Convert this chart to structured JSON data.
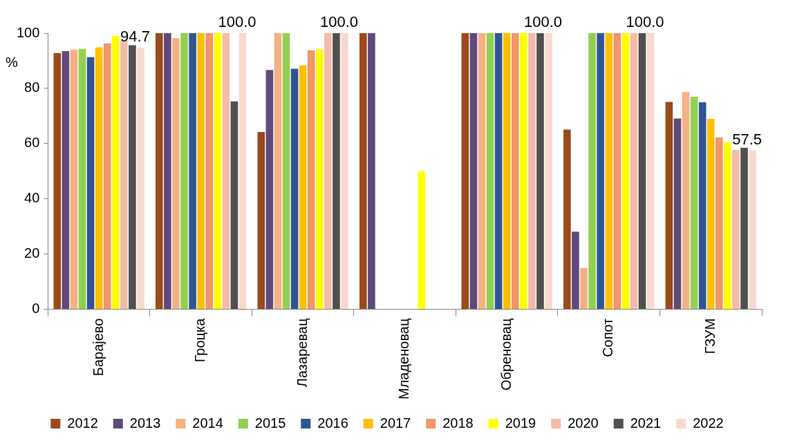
{
  "chart_data": {
    "type": "bar",
    "ylabel": "%",
    "categories": [
      "Барајево",
      "Гроцка",
      "Лазаревац",
      "Младеновац",
      "Обреновац",
      "Сопот",
      "ГЗУМ"
    ],
    "ylim": [
      0,
      100
    ],
    "yticks": [
      0,
      20,
      40,
      60,
      80,
      100
    ],
    "grid": false,
    "legend": "bottom",
    "series": [
      {
        "name": "2012",
        "color": "#9c4a1a",
        "values": [
          92.8,
          100,
          64.2,
          100,
          100,
          65.1,
          75.1
        ]
      },
      {
        "name": "2013",
        "color": "#604a7b",
        "values": [
          93.5,
          100,
          86.7,
          100,
          100,
          28.1,
          69.1
        ]
      },
      {
        "name": "2014",
        "color": "#f4b183",
        "values": [
          94.0,
          98.2,
          100,
          null,
          100,
          15.0,
          78.7
        ]
      },
      {
        "name": "2015",
        "color": "#92d050",
        "values": [
          94.3,
          100,
          100,
          null,
          100,
          100,
          77.0
        ]
      },
      {
        "name": "2016",
        "color": "#2f5597",
        "values": [
          91.3,
          100,
          87.1,
          null,
          100,
          100,
          75.0
        ]
      },
      {
        "name": "2017",
        "color": "#ffc000",
        "values": [
          94.9,
          100,
          88.3,
          null,
          100,
          100,
          69.0
        ]
      },
      {
        "name": "2018",
        "color": "#f4956a",
        "values": [
          96.3,
          100,
          93.8,
          null,
          100,
          100,
          62.3
        ]
      },
      {
        "name": "2019",
        "color": "#ffff00",
        "values": [
          99.0,
          100,
          94.1,
          50,
          100,
          100,
          60.4
        ]
      },
      {
        "name": "2020",
        "color": "#f5bba8",
        "values": [
          97.4,
          100,
          100,
          null,
          100,
          100,
          57.7
        ]
      },
      {
        "name": "2021",
        "color": "#505050",
        "values": [
          95.6,
          75.3,
          100,
          null,
          100,
          100,
          58.5
        ]
      },
      {
        "name": "2022",
        "color": "#f9d9cf",
        "values": [
          94.7,
          100,
          100,
          null,
          100,
          100,
          57.5
        ],
        "value_labels": [
          "94.7",
          "100.0",
          "100.0",
          null,
          "100.0",
          "100.0",
          "57.5"
        ]
      }
    ]
  }
}
